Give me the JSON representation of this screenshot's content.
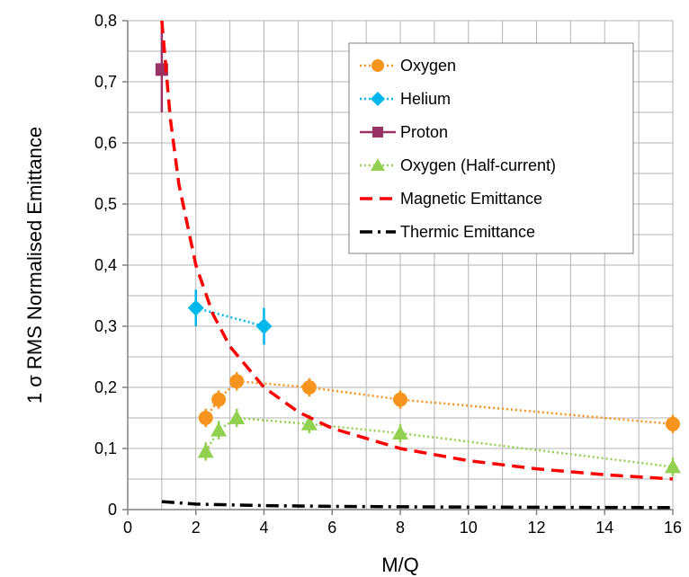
{
  "chart_data": {
    "type": "scatter",
    "xlabel": "M/Q",
    "ylabel": "1 σ RMS Normalised Emittance",
    "xlim": [
      0,
      16
    ],
    "ylim": [
      0,
      0.8
    ],
    "x_ticks": [
      "0",
      "2",
      "4",
      "6",
      "8",
      "10",
      "12",
      "14",
      "16"
    ],
    "y_ticks": [
      "0",
      "0,1",
      "0,2",
      "0,3",
      "0,4",
      "0,5",
      "0,6",
      "0,7",
      "0,8"
    ],
    "grid": true,
    "legend_position": "top-right",
    "series": [
      {
        "name": "Oxygen",
        "style": "dotted-line-circle",
        "color": "#F7941D",
        "points": [
          [
            2.29,
            0.15
          ],
          [
            2.67,
            0.18
          ],
          [
            3.2,
            0.21
          ],
          [
            5.33,
            0.2
          ],
          [
            8,
            0.18
          ],
          [
            16,
            0.14
          ]
        ],
        "error": 0.015
      },
      {
        "name": "Helium",
        "style": "dotted-line-diamond",
        "color": "#00B7EB",
        "points": [
          [
            2,
            0.33
          ],
          [
            4,
            0.3
          ]
        ],
        "error": 0.03
      },
      {
        "name": "Proton",
        "style": "solid-line-square",
        "color": "#993366",
        "points": [
          [
            1,
            0.72
          ]
        ],
        "error": 0.07
      },
      {
        "name": "Oxygen (Half-current)",
        "style": "dotted-line-triangle",
        "color": "#92D050",
        "points": [
          [
            2.29,
            0.095
          ],
          [
            2.67,
            0.13
          ],
          [
            3.2,
            0.15
          ],
          [
            5.33,
            0.14
          ],
          [
            8,
            0.125
          ],
          [
            16,
            0.07
          ]
        ],
        "error": 0.015
      },
      {
        "name": "Magnetic Emittance",
        "style": "dashed",
        "color": "#FF0000",
        "points": [
          [
            1,
            0.8
          ],
          [
            1.25,
            0.64
          ],
          [
            1.5,
            0.533
          ],
          [
            2,
            0.4
          ],
          [
            2.5,
            0.32
          ],
          [
            3,
            0.267
          ],
          [
            4,
            0.2
          ],
          [
            5,
            0.16
          ],
          [
            6,
            0.133
          ],
          [
            8,
            0.1
          ],
          [
            10,
            0.08
          ],
          [
            12,
            0.0667
          ],
          [
            14,
            0.0571
          ],
          [
            16,
            0.05
          ]
        ]
      },
      {
        "name": "Thermic Emittance",
        "style": "dash-dot",
        "color": "#000000",
        "points": [
          [
            1,
            0.013
          ],
          [
            2,
            0.009
          ],
          [
            4,
            0.0065
          ],
          [
            6,
            0.0053
          ],
          [
            8,
            0.0046
          ],
          [
            10,
            0.0041
          ],
          [
            12,
            0.0038
          ],
          [
            14,
            0.0035
          ],
          [
            16,
            0.0033
          ]
        ]
      }
    ]
  }
}
